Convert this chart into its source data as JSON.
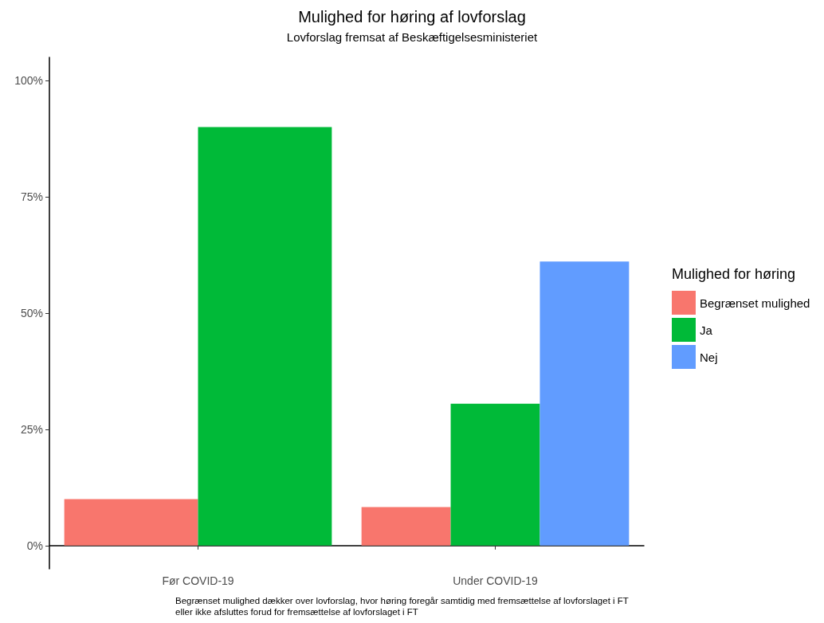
{
  "chart_data": {
    "type": "bar",
    "title": "Mulighed for høring af lovforslag",
    "subtitle": "Lovforslag fremsat af Beskæftigelsesministeriet",
    "categories": [
      "Før COVID-19",
      "Under COVID-19"
    ],
    "series": [
      {
        "name": "Begrænset mulighed",
        "color": "#f8766d",
        "values": [
          10,
          8.3
        ]
      },
      {
        "name": "Ja",
        "color": "#00ba38",
        "values": [
          90,
          30.5
        ]
      },
      {
        "name": "Nej",
        "color": "#619cff",
        "values": [
          null,
          61.1
        ]
      }
    ],
    "legend_title": "Mulighed for høring",
    "legend": "right",
    "ylim": [
      -5,
      105
    ],
    "yticks": [
      {
        "value": 0,
        "label": "0%"
      },
      {
        "value": 25,
        "label": "25%"
      },
      {
        "value": 50,
        "label": "50%"
      },
      {
        "value": 75,
        "label": "75%"
      },
      {
        "value": 100,
        "label": "100%"
      }
    ],
    "grid": false,
    "annotations": [
      "Begrænset mulighed dækker over lovforslag, hvor høring foregår samtidig med fremsættelse af lovforslaget i FT eller ikke afsluttes forud for fremsættelse af lovforslaget i FT"
    ]
  }
}
